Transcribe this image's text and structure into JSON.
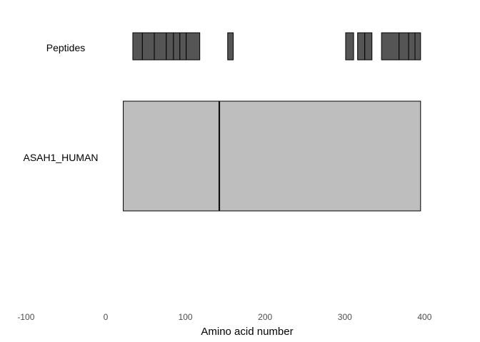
{
  "chart_data": {
    "type": "bar",
    "xlabel": "Amino acid number",
    "xlim": [
      -100,
      400
    ],
    "xticks": [
      "-100",
      "0",
      "100",
      "200",
      "300",
      "400"
    ],
    "tracks": [
      {
        "name": "Peptides",
        "color": "#555555",
        "segments": [
          {
            "start": 34,
            "end": 46
          },
          {
            "start": 46,
            "end": 61
          },
          {
            "start": 61,
            "end": 76
          },
          {
            "start": 76,
            "end": 85
          },
          {
            "start": 85,
            "end": 93
          },
          {
            "start": 93,
            "end": 101
          },
          {
            "start": 101,
            "end": 118
          },
          {
            "start": 153,
            "end": 160
          },
          {
            "start": 301,
            "end": 311
          },
          {
            "start": 316,
            "end": 325
          },
          {
            "start": 325,
            "end": 334
          },
          {
            "start": 346,
            "end": 368
          },
          {
            "start": 368,
            "end": 380
          },
          {
            "start": 380,
            "end": 388
          },
          {
            "start": 388,
            "end": 395
          }
        ]
      },
      {
        "name": "ASAH1_HUMAN",
        "color": "#bebebe",
        "segments": [
          {
            "start": 22,
            "end": 142
          },
          {
            "start": 143,
            "end": 395
          }
        ]
      }
    ]
  }
}
